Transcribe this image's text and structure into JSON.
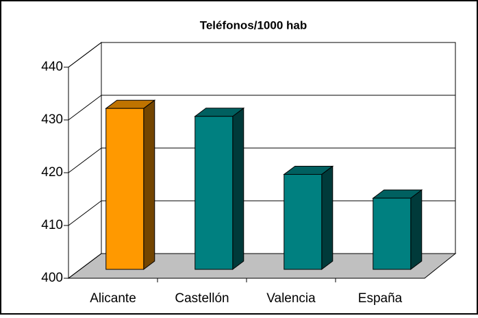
{
  "chart_data": {
    "type": "bar3d",
    "title": "Teléfonos/1000 hab",
    "categories": [
      "Alicante",
      "Castellón",
      "Valencia",
      "España"
    ],
    "values": [
      430.5,
      429,
      418,
      413.5
    ],
    "colors": [
      "#ff9900",
      "#008080",
      "#008080",
      "#008080"
    ],
    "ylim": [
      400,
      440
    ],
    "yticks": [
      400,
      410,
      420,
      430,
      440
    ],
    "grid": true
  }
}
